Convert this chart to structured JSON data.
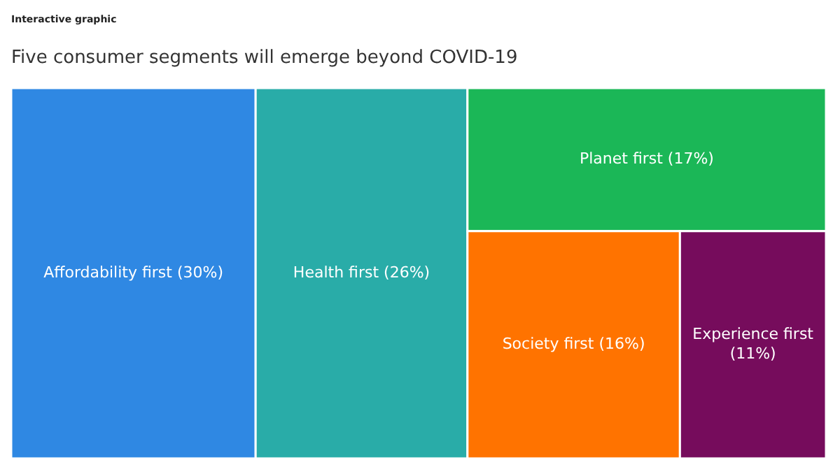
{
  "chart_data": {
    "type": "other",
    "title": "Five consumer segments will emerge beyond COVID-19",
    "annotations": [
      "Interactive graphic"
    ],
    "categories": [
      "Affordability first",
      "Health first",
      "Planet first",
      "Society first",
      "Experience first"
    ],
    "values": [
      30,
      26,
      17,
      16,
      11
    ],
    "value_labels": [
      "(30%)",
      "(26%)",
      "(17%)",
      "(16%)",
      "(11%)"
    ],
    "colors": [
      "#2f88e3",
      "#29aca8",
      "#1bb757",
      "#ff7300",
      "#760c5c"
    ]
  }
}
